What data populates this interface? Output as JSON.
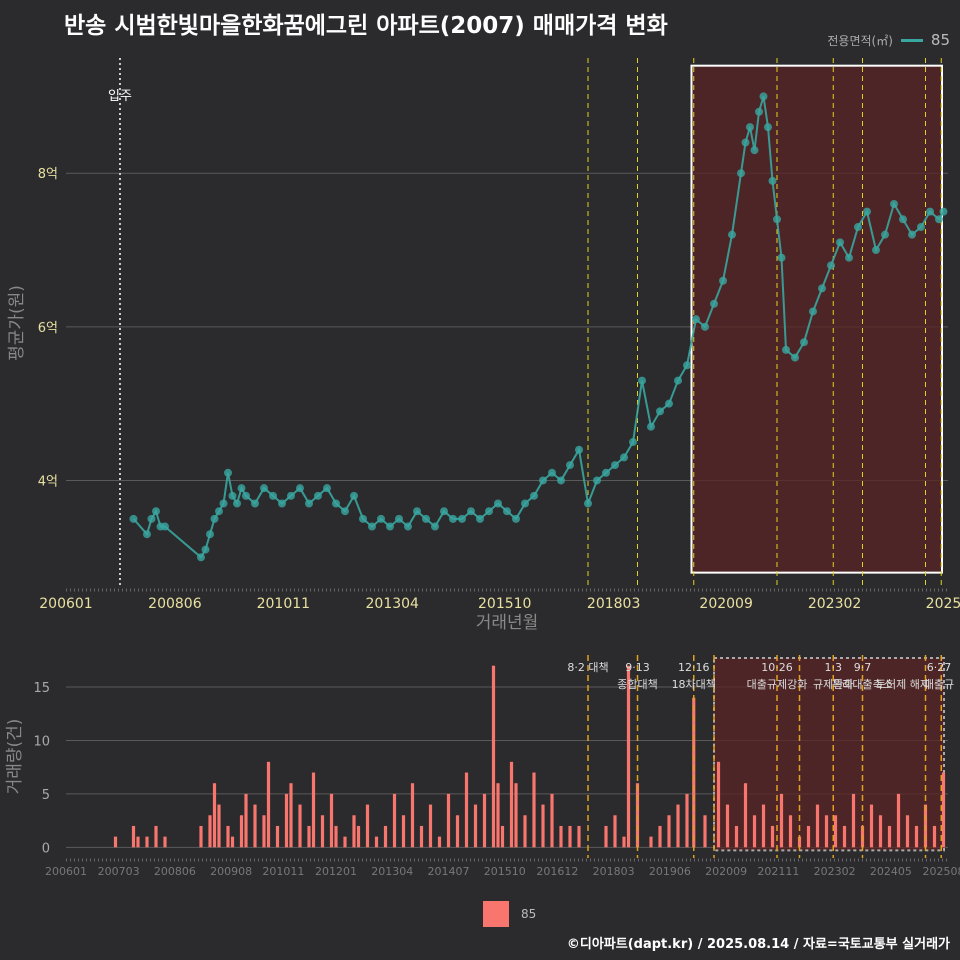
{
  "title": "반송 시범한빛마을한화꿈에그린 아파트(2007) 매매가격 변화",
  "legend_top": {
    "label": "전용면적(㎡)",
    "value": "85"
  },
  "legend_bottom": {
    "value": "85"
  },
  "footer": "©디아파트(dapt.kr) / 2025.08.14 / 자료=국토교통부 실거래가",
  "colors": {
    "background": "#2b2b2d",
    "price_line": "#3aa6a0",
    "volume_bar": "#f8766d",
    "highlight": "#5a2424",
    "policy_line": "#e3d21c",
    "grid": "#5a5a5a"
  },
  "chart_data": [
    {
      "type": "scatter",
      "name": "price-chart",
      "title": "",
      "xlabel": "거래년월",
      "ylabel": "평균가(원)",
      "x_range": [
        2006.0,
        2025.6
      ],
      "ylim": [
        2.6,
        9.5
      ],
      "y_ticks": [
        {
          "v": 4,
          "label": "4억"
        },
        {
          "v": 6,
          "label": "6억"
        },
        {
          "v": 8,
          "label": "8억"
        }
      ],
      "x_ticks": [
        {
          "v": 2006.0,
          "label": "200601"
        },
        {
          "v": 2008.42,
          "label": "200806"
        },
        {
          "v": 2010.83,
          "label": "201011"
        },
        {
          "v": 2013.25,
          "label": "201304"
        },
        {
          "v": 2015.75,
          "label": "201510"
        },
        {
          "v": 2018.17,
          "label": "201803"
        },
        {
          "v": 2020.67,
          "label": "202009"
        },
        {
          "v": 2023.08,
          "label": "202302"
        },
        {
          "v": 2025.5,
          "label": "2025"
        }
      ],
      "move_in": {
        "x": 2007.2,
        "label": "입주"
      },
      "policy_lines": [
        2017.6,
        2018.7,
        2019.95,
        2021.8,
        2023.05,
        2023.7,
        2025.1,
        2025.45
      ],
      "highlight_range": [
        2019.9,
        2025.6
      ],
      "highlight_y": [
        2.8,
        9.4
      ],
      "series": [
        {
          "name": "85",
          "x": [
            2007.5,
            2007.8,
            2007.9,
            2008.0,
            2008.1,
            2008.2,
            2009.0,
            2009.1,
            2009.2,
            2009.3,
            2009.4,
            2009.5,
            2009.6,
            2009.7,
            2009.8,
            2009.9,
            2010.0,
            2010.2,
            2010.4,
            2010.6,
            2010.8,
            2011.0,
            2011.2,
            2011.4,
            2011.6,
            2011.8,
            2012.0,
            2012.2,
            2012.4,
            2012.6,
            2012.8,
            2013.0,
            2013.2,
            2013.4,
            2013.6,
            2013.8,
            2014.0,
            2014.2,
            2014.4,
            2014.6,
            2014.8,
            2015.0,
            2015.2,
            2015.4,
            2015.6,
            2015.8,
            2016.0,
            2016.2,
            2016.4,
            2016.6,
            2016.8,
            2017.0,
            2017.2,
            2017.4,
            2017.6,
            2017.8,
            2018.0,
            2018.2,
            2018.4,
            2018.6,
            2018.8,
            2019.0,
            2019.2,
            2019.4,
            2019.6,
            2019.8,
            2020.0,
            2020.2,
            2020.4,
            2020.6,
            2020.8,
            2021.0,
            2021.1,
            2021.2,
            2021.3,
            2021.4,
            2021.5,
            2021.6,
            2021.7,
            2021.8,
            2021.9,
            2022.0,
            2022.2,
            2022.4,
            2022.6,
            2022.8,
            2023.0,
            2023.2,
            2023.4,
            2023.6,
            2023.8,
            2024.0,
            2024.2,
            2024.4,
            2024.6,
            2024.8,
            2025.0,
            2025.2,
            2025.4,
            2025.5
          ],
          "y": [
            3.5,
            3.3,
            3.5,
            3.6,
            3.4,
            3.4,
            3.0,
            3.1,
            3.3,
            3.5,
            3.6,
            3.7,
            4.1,
            3.8,
            3.7,
            3.9,
            3.8,
            3.7,
            3.9,
            3.8,
            3.7,
            3.8,
            3.9,
            3.7,
            3.8,
            3.9,
            3.7,
            3.6,
            3.8,
            3.5,
            3.4,
            3.5,
            3.4,
            3.5,
            3.4,
            3.6,
            3.5,
            3.4,
            3.6,
            3.5,
            3.5,
            3.6,
            3.5,
            3.6,
            3.7,
            3.6,
            3.5,
            3.7,
            3.8,
            4.0,
            4.1,
            4.0,
            4.2,
            4.4,
            3.7,
            4.0,
            4.1,
            4.2,
            4.3,
            4.5,
            5.3,
            4.7,
            4.9,
            5.0,
            5.3,
            5.5,
            6.1,
            6.0,
            6.3,
            6.6,
            7.2,
            8.0,
            8.4,
            8.6,
            8.3,
            8.8,
            9.0,
            8.6,
            7.9,
            7.4,
            6.9,
            5.7,
            5.6,
            5.8,
            6.2,
            6.5,
            6.8,
            7.1,
            6.9,
            7.3,
            7.5,
            7.0,
            7.2,
            7.6,
            7.4,
            7.2,
            7.3,
            7.5,
            7.4,
            7.5
          ]
        }
      ]
    },
    {
      "type": "bar",
      "name": "volume-chart",
      "xlabel": "",
      "ylabel": "거래량(건)",
      "x_range": [
        2006.0,
        2025.6
      ],
      "ylim": [
        -1,
        18
      ],
      "y_ticks": [
        {
          "v": 0,
          "label": "0"
        },
        {
          "v": 5,
          "label": "5"
        },
        {
          "v": 10,
          "label": "10"
        },
        {
          "v": 15,
          "label": "15"
        }
      ],
      "x_ticks": [
        {
          "v": 2006.0,
          "label": "200601"
        },
        {
          "v": 2007.17,
          "label": "200703"
        },
        {
          "v": 2008.42,
          "label": "200806"
        },
        {
          "v": 2009.67,
          "label": "200908"
        },
        {
          "v": 2010.83,
          "label": "201011"
        },
        {
          "v": 2012.0,
          "label": "201201"
        },
        {
          "v": 2013.25,
          "label": "201304"
        },
        {
          "v": 2014.5,
          "label": "201407"
        },
        {
          "v": 2015.75,
          "label": "201510"
        },
        {
          "v": 2016.92,
          "label": "201612"
        },
        {
          "v": 2018.17,
          "label": "201803"
        },
        {
          "v": 2019.42,
          "label": "201906"
        },
        {
          "v": 2020.67,
          "label": "202009"
        },
        {
          "v": 2021.83,
          "label": "202111"
        },
        {
          "v": 2023.08,
          "label": "202302"
        },
        {
          "v": 2024.33,
          "label": "202405"
        },
        {
          "v": 2025.5,
          "label": "202508"
        }
      ],
      "policy_lines": [
        2017.6,
        2018.7,
        2019.95,
        2020.4,
        2021.8,
        2022.3,
        2023.05,
        2023.7,
        2025.1,
        2025.45
      ],
      "highlight_range": [
        2020.4,
        2025.6
      ],
      "annotations": [
        {
          "x": 2017.6,
          "lines": [
            "8·2 대책"
          ]
        },
        {
          "x": 2018.7,
          "lines": [
            "9·13",
            "종합대책"
          ]
        },
        {
          "x": 2019.95,
          "lines": [
            "12·16",
            "18차대책"
          ]
        },
        {
          "x": 2021.8,
          "lines": [
            "10·26",
            "대출규제강화"
          ]
        },
        {
          "x": 2023.05,
          "lines": [
            "1·3",
            "규제완화"
          ]
        },
        {
          "x": 2023.7,
          "lines": [
            "9·7",
            "특례대출축소"
          ]
        },
        {
          "x": 2024.6,
          "lines": [
            "",
            "토허제 해제"
          ]
        },
        {
          "x": 2025.4,
          "lines": [
            "6·27",
            "대출규"
          ]
        }
      ],
      "series": [
        {
          "name": "85",
          "x": [
            2007.1,
            2007.5,
            2007.6,
            2007.8,
            2008.0,
            2008.2,
            2009.0,
            2009.2,
            2009.3,
            2009.4,
            2009.6,
            2009.7,
            2009.9,
            2010.0,
            2010.2,
            2010.4,
            2010.5,
            2010.7,
            2010.9,
            2011.0,
            2011.2,
            2011.4,
            2011.5,
            2011.7,
            2011.9,
            2012.0,
            2012.2,
            2012.4,
            2012.5,
            2012.7,
            2012.9,
            2013.1,
            2013.3,
            2013.5,
            2013.7,
            2013.9,
            2014.1,
            2014.3,
            2014.5,
            2014.7,
            2014.9,
            2015.1,
            2015.3,
            2015.5,
            2015.6,
            2015.7,
            2015.9,
            2016.0,
            2016.2,
            2016.4,
            2016.6,
            2016.8,
            2017.0,
            2017.2,
            2017.4,
            2018.0,
            2018.2,
            2018.4,
            2018.5,
            2018.7,
            2019.0,
            2019.2,
            2019.4,
            2019.6,
            2019.8,
            2019.95,
            2020.2,
            2020.5,
            2020.7,
            2020.9,
            2021.1,
            2021.3,
            2021.5,
            2021.7,
            2021.9,
            2022.1,
            2022.3,
            2022.5,
            2022.7,
            2022.9,
            2023.1,
            2023.3,
            2023.5,
            2023.7,
            2023.9,
            2024.1,
            2024.3,
            2024.5,
            2024.7,
            2024.9,
            2025.1,
            2025.3,
            2025.5
          ],
          "values": [
            1,
            2,
            1,
            1,
            2,
            1,
            2,
            3,
            6,
            4,
            2,
            1,
            3,
            5,
            4,
            3,
            8,
            2,
            5,
            6,
            4,
            2,
            7,
            3,
            5,
            2,
            1,
            3,
            2,
            4,
            1,
            2,
            5,
            3,
            6,
            2,
            4,
            1,
            5,
            3,
            7,
            4,
            5,
            17,
            6,
            2,
            8,
            6,
            3,
            7,
            4,
            5,
            2,
            2,
            2,
            2,
            3,
            1,
            17,
            6,
            1,
            2,
            3,
            4,
            5,
            14,
            3,
            8,
            4,
            2,
            6,
            3,
            4,
            2,
            5,
            3,
            1,
            2,
            4,
            3,
            3,
            2,
            5,
            2,
            4,
            3,
            2,
            5,
            3,
            2,
            4,
            2,
            7
          ]
        }
      ]
    }
  ]
}
